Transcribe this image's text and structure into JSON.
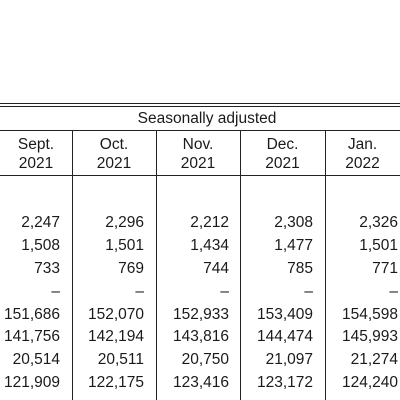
{
  "table": {
    "section_title": "Seasonally adjusted",
    "columns": [
      {
        "month": "Sept.",
        "year": "2021"
      },
      {
        "month": "Oct.",
        "year": "2021"
      },
      {
        "month": "Nov.",
        "year": "2021"
      },
      {
        "month": "Dec.",
        "year": "2021"
      },
      {
        "month": "Jan.",
        "year": "2022"
      }
    ],
    "rows": [
      [
        "2,247",
        "2,296",
        "2,212",
        "2,308",
        "2,326"
      ],
      [
        "1,508",
        "1,501",
        "1,434",
        "1,477",
        "1,501"
      ],
      [
        "733",
        "769",
        "744",
        "785",
        "771"
      ],
      [
        "–",
        "–",
        "–",
        "–",
        "–"
      ],
      [
        "151,686",
        "152,070",
        "152,933",
        "153,409",
        "154,598"
      ],
      [
        "141,756",
        "142,194",
        "143,816",
        "144,474",
        "145,993"
      ],
      [
        "20,514",
        "20,511",
        "20,750",
        "21,097",
        "21,274"
      ],
      [
        "121,909",
        "122,175",
        "123,416",
        "123,172",
        "124,240"
      ]
    ]
  }
}
